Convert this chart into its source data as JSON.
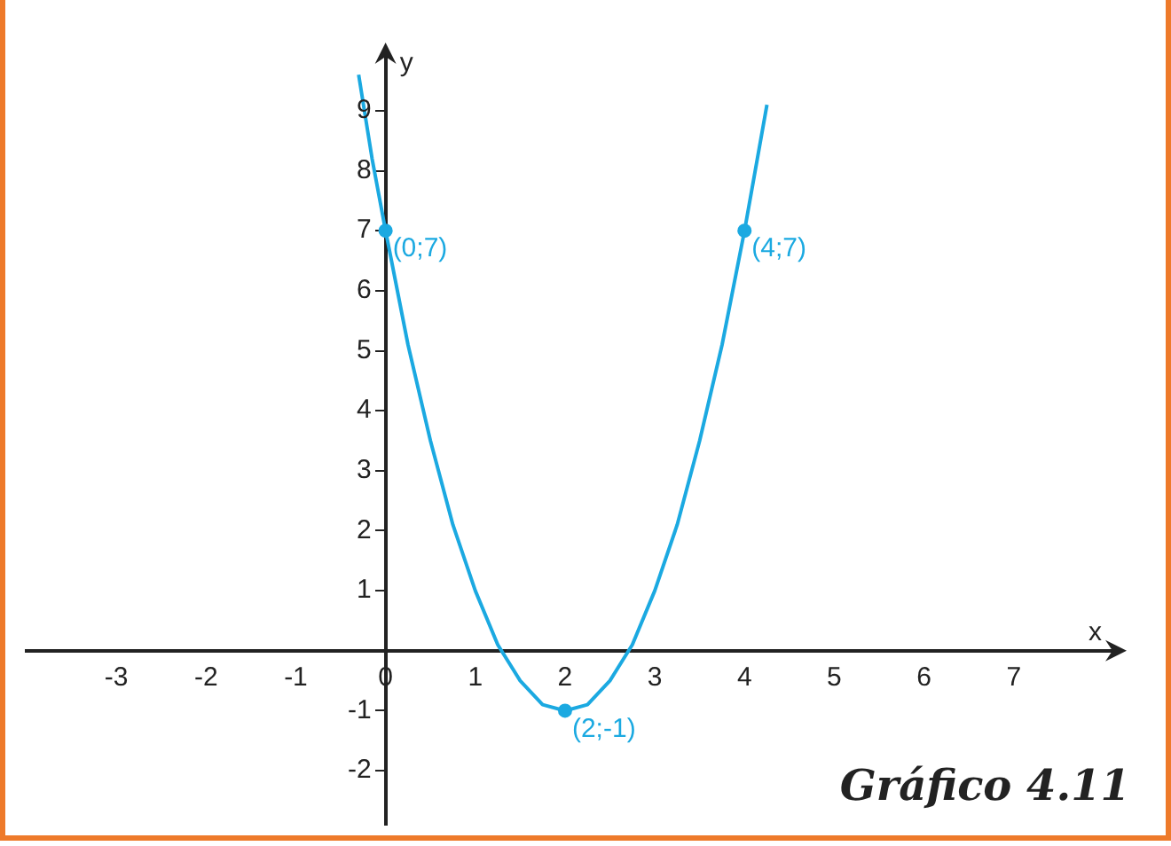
{
  "chart_data": {
    "type": "line",
    "xlabel": "x",
    "ylabel": "y",
    "xlim": [
      -4,
      8.1
    ],
    "ylim": [
      -2.9,
      9.9
    ],
    "xticks": [
      -3,
      -2,
      -1,
      0,
      1,
      2,
      3,
      4,
      5,
      6,
      7
    ],
    "yticks": [
      -2,
      -1,
      1,
      2,
      3,
      4,
      5,
      6,
      7,
      8,
      9
    ],
    "grid": false,
    "legend": false,
    "series": [
      {
        "type": "line",
        "color": "#1ba9e1",
        "marker": "none",
        "x": [
          -0.3,
          -0.15,
          0,
          0.25,
          0.5,
          0.75,
          1,
          1.25,
          1.5,
          1.75,
          2,
          2.25,
          2.5,
          2.75,
          3,
          3.25,
          3.5,
          3.75,
          4,
          4.25
        ],
        "values": [
          9.6,
          8.2,
          7,
          5.1,
          3.5,
          2.1,
          1,
          0.1,
          -0.5,
          -0.9,
          -1,
          -0.9,
          -0.5,
          0.1,
          1,
          2.1,
          3.5,
          5.1,
          7,
          9.1
        ]
      },
      {
        "type": "scatter",
        "color": "#1ba9e1",
        "marker": "circle",
        "x": [
          0,
          2,
          4
        ],
        "values": [
          7,
          -1,
          7
        ]
      }
    ],
    "annotations": [
      {
        "text": "(0;7)",
        "x": 0,
        "y": 7
      },
      {
        "text": "(2;-1)",
        "x": 2,
        "y": -1
      },
      {
        "text": "(4;7)",
        "x": 4,
        "y": 7
      },
      "Gráfico 4.11"
    ]
  }
}
